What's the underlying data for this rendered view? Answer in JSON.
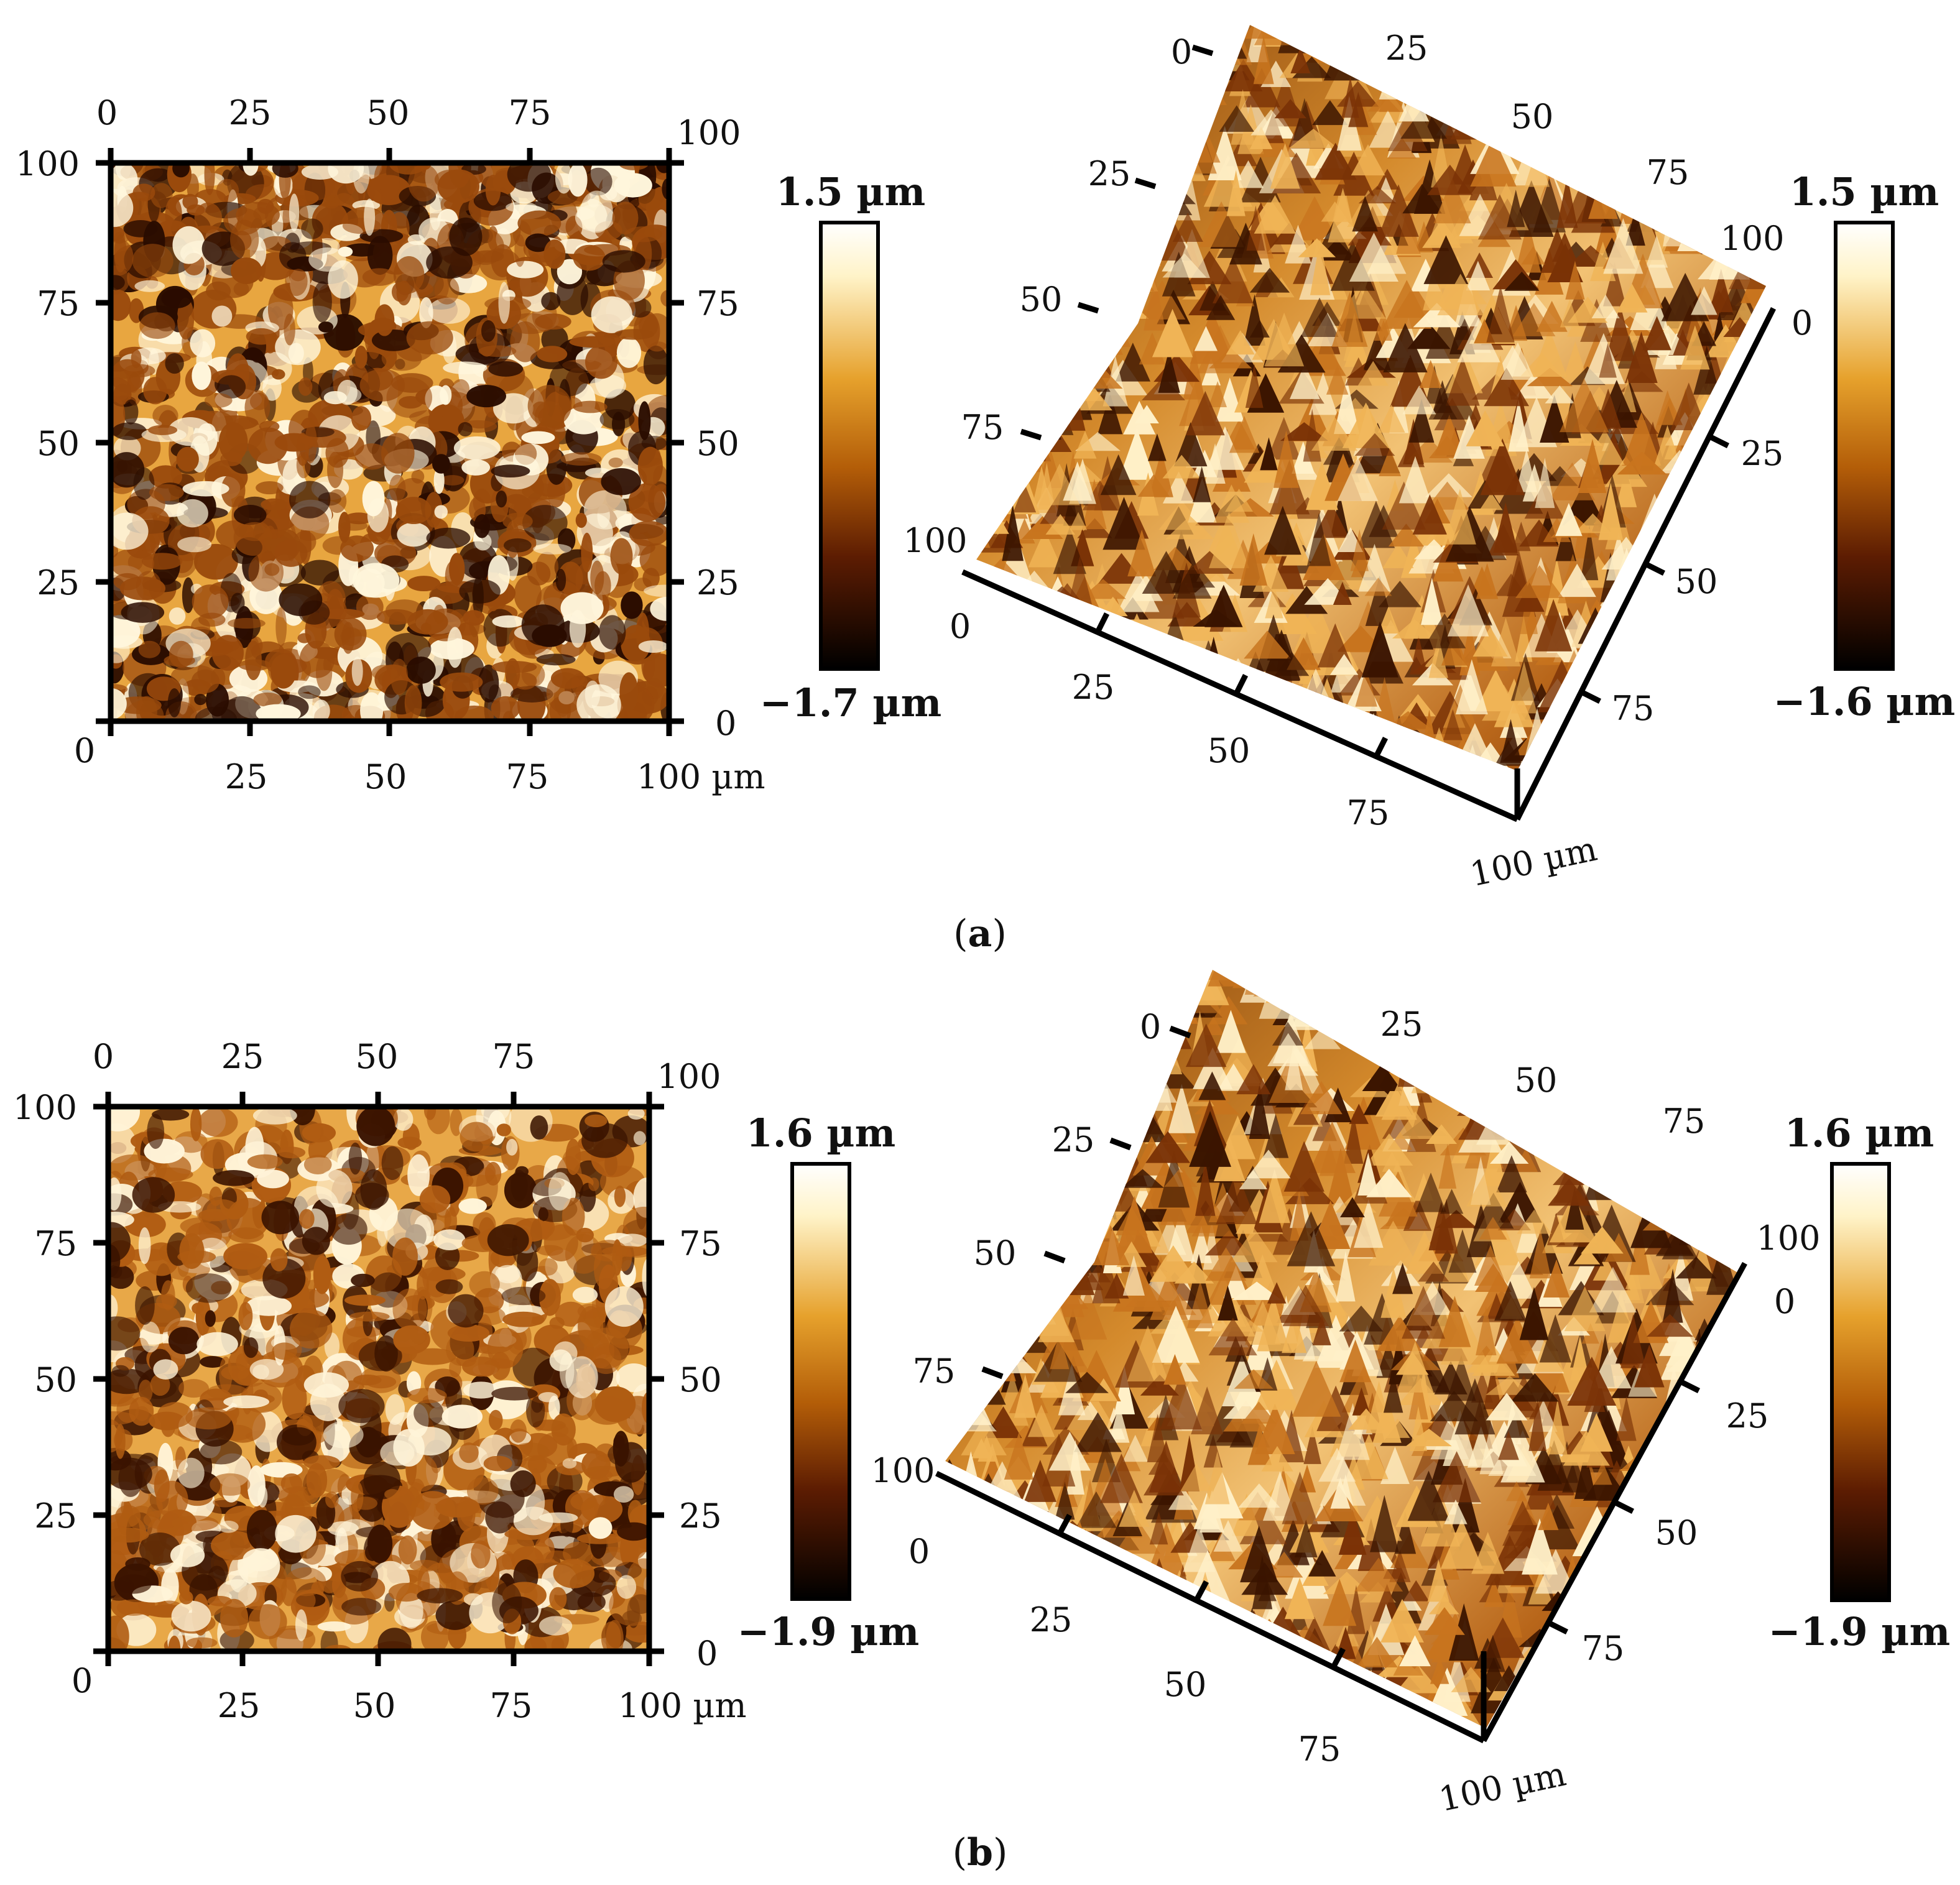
{
  "panels": [
    {
      "label_open": "(",
      "label_letter": "a",
      "label_close": ")",
      "map2d": {
        "top_ticks": [
          "0",
          "25",
          "50",
          "75"
        ],
        "top_right_corner": "100",
        "left_ticks": [
          "100",
          "75",
          "50",
          "25"
        ],
        "right_ticks": [
          "75",
          "50",
          "25",
          "0"
        ],
        "bottom_origin": "0",
        "bottom_ticks": [
          "25",
          "50",
          "75",
          "100 µm"
        ],
        "colors": {
          "dark": "#2a0c00",
          "mid": "#9a4a0c",
          "light": "#e8a640",
          "peak": "#fff6dc"
        }
      },
      "colorbar_left": {
        "max": "1.5 µm",
        "min": "−1.7 µm"
      },
      "map3d": {
        "left_ticks": [
          "0",
          "25",
          "50",
          "75",
          "100"
        ],
        "top_ticks": [
          "25",
          "50",
          "75"
        ],
        "right_top": "100",
        "right_zero": "0",
        "right_ticks": [
          "25",
          "50",
          "75"
        ],
        "bottom_origin": "0",
        "bottom_ticks": [
          "25",
          "50",
          "75"
        ],
        "corner": "100 µm"
      },
      "colorbar_right": {
        "max": "1.5 µm",
        "min": "−1.6 µm"
      }
    },
    {
      "label_open": "(",
      "label_letter": "b",
      "label_close": ")",
      "map2d": {
        "top_ticks": [
          "0",
          "25",
          "50",
          "75"
        ],
        "top_right_corner": "100",
        "left_ticks": [
          "100",
          "75",
          "50",
          "25"
        ],
        "right_ticks": [
          "75",
          "50",
          "25",
          "0"
        ],
        "bottom_origin": "0",
        "bottom_ticks": [
          "25",
          "50",
          "75",
          "100 µm"
        ],
        "colors": {
          "dark": "#3a1300",
          "mid": "#b05c12",
          "light": "#e8a848",
          "peak": "#fff4d8"
        }
      },
      "colorbar_left": {
        "max": "1.6 µm",
        "min": "−1.9 µm"
      },
      "map3d": {
        "left_ticks": [
          "0",
          "25",
          "50",
          "75",
          "100"
        ],
        "top_ticks": [
          "25",
          "50",
          "75"
        ],
        "right_top": "100",
        "right_zero": "0",
        "right_ticks": [
          "25",
          "50",
          "75"
        ],
        "bottom_origin": "0",
        "bottom_ticks": [
          "25",
          "50",
          "75"
        ],
        "corner": "100 µm"
      },
      "colorbar_right": {
        "max": "1.6 µm",
        "min": "−1.9 µm"
      }
    }
  ]
}
